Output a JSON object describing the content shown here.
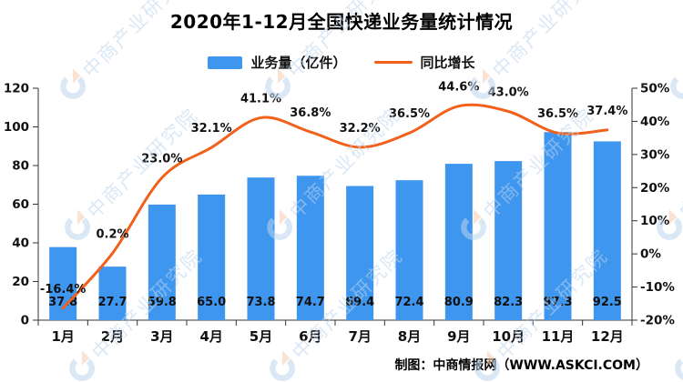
{
  "chart_data": {
    "type": "bar+line",
    "title": "2020年1-12月全国快递业务量统计情况",
    "categories": [
      "1月",
      "2月",
      "3月",
      "4月",
      "5月",
      "6月",
      "7月",
      "8月",
      "9月",
      "10月",
      "11月",
      "12月"
    ],
    "series": [
      {
        "name": "业务量（亿件）",
        "type": "bar",
        "axis": "left",
        "color": "#3E96EE",
        "values": [
          37.8,
          27.7,
          59.8,
          65.0,
          73.8,
          74.7,
          69.4,
          72.4,
          80.9,
          82.3,
          97.3,
          92.5
        ]
      },
      {
        "name": "同比增长",
        "type": "line",
        "axis": "right",
        "color": "#F2611C",
        "unit": "%",
        "values": [
          -16.4,
          0.2,
          23.0,
          32.1,
          41.1,
          36.8,
          32.2,
          36.5,
          44.6,
          43.0,
          36.5,
          37.4
        ]
      }
    ],
    "left_axis": {
      "min": 0,
      "max": 120,
      "step": 20
    },
    "right_axis": {
      "min": -20,
      "max": 50,
      "step": 10,
      "suffix": "%"
    },
    "grid": false,
    "legend_position": "top-center",
    "data_label_format": "one-decimal"
  },
  "watermark": {
    "text": "中商产业研究院"
  },
  "credit": "制图：中商情报网（WWW.ASKCI.COM）",
  "colors": {
    "bar": "#3E96EE",
    "line": "#F2611C",
    "watermark_blue": "#bdd5ee",
    "watermark_peach": "#f8cdb2"
  }
}
